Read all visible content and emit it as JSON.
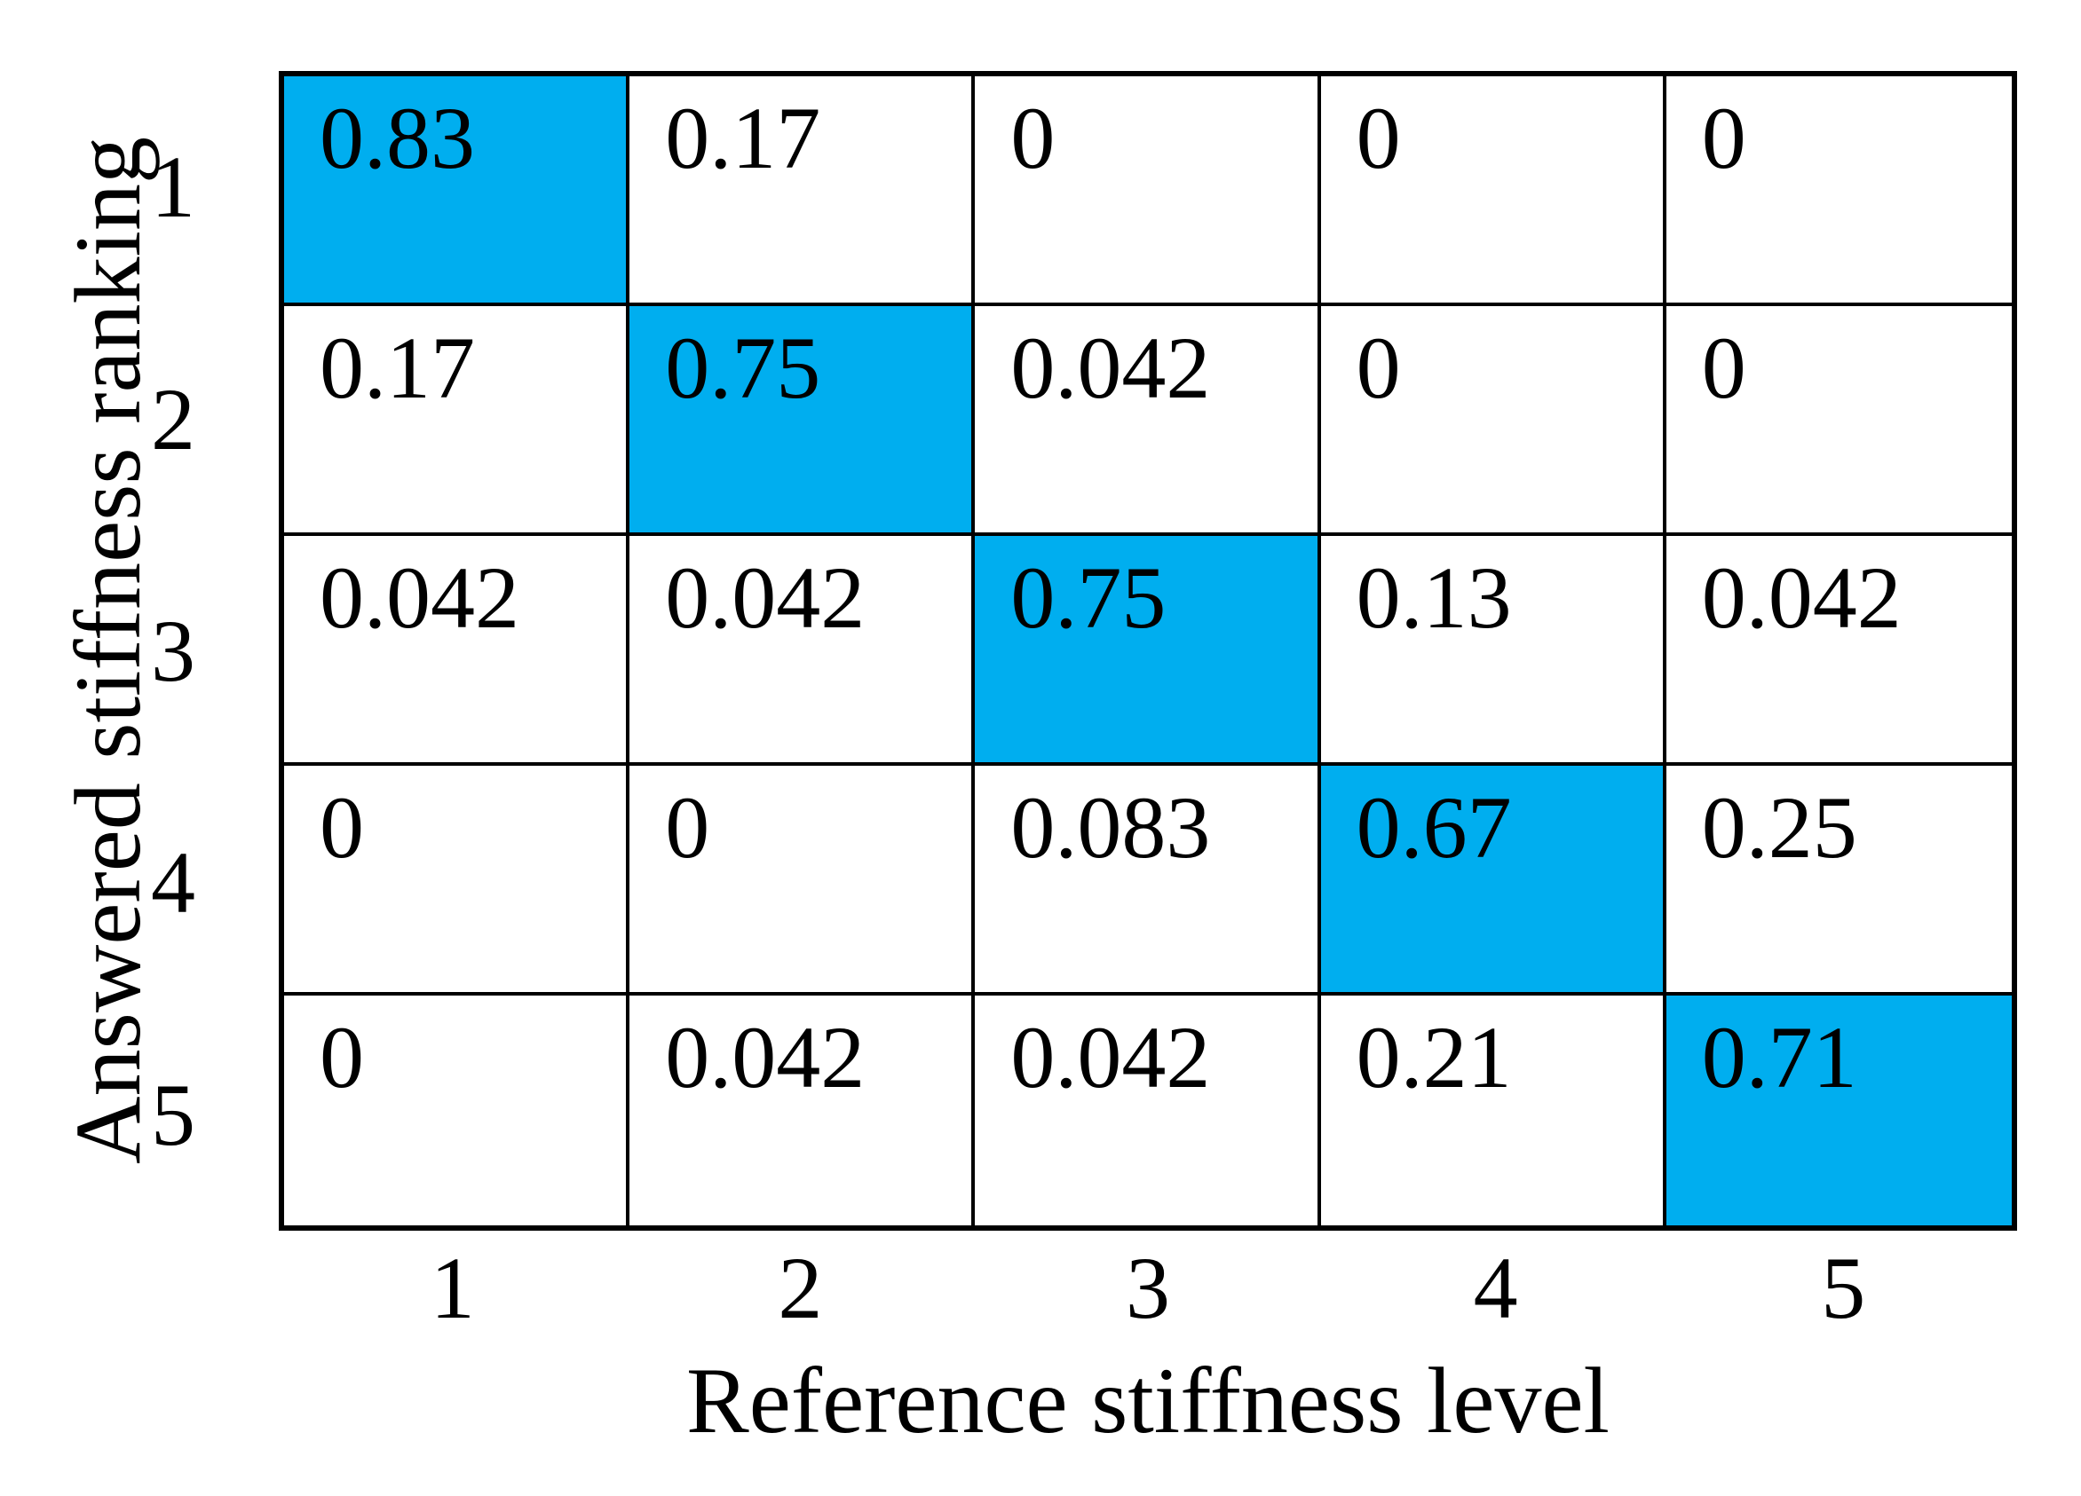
{
  "chart_data": {
    "type": "heatmap",
    "title": "",
    "xlabel": "Reference stiffness level",
    "ylabel": "Answered stiffness ranking",
    "x_categories": [
      "1",
      "2",
      "3",
      "4",
      "5"
    ],
    "y_categories": [
      "1",
      "2",
      "3",
      "4",
      "5"
    ],
    "matrix": [
      [
        0.83,
        0.17,
        0,
        0,
        0
      ],
      [
        0.17,
        0.75,
        0.042,
        0,
        0
      ],
      [
        0.042,
        0.042,
        0.75,
        0.13,
        0.042
      ],
      [
        0,
        0,
        0.083,
        0.67,
        0.25
      ],
      [
        0,
        0.042,
        0.042,
        0.21,
        0.71
      ]
    ],
    "cell_labels": [
      [
        "0.83",
        "0.17",
        "0",
        "0",
        "0"
      ],
      [
        "0.17",
        "0.75",
        "0.042",
        "0",
        "0"
      ],
      [
        "0.042",
        "0.042",
        "0.75",
        "0.13",
        "0.042"
      ],
      [
        "0",
        "0",
        "0.083",
        "0.67",
        "0.25"
      ],
      [
        "0",
        "0.042",
        "0.042",
        "0.21",
        "0.71"
      ]
    ],
    "highlight": "diagonal",
    "highlight_color": "#00AEEF",
    "cell_background": "#FFFFFF",
    "grid_line_color": "#000000",
    "text_color": "#000000",
    "legend": "none",
    "grid_on": true
  }
}
